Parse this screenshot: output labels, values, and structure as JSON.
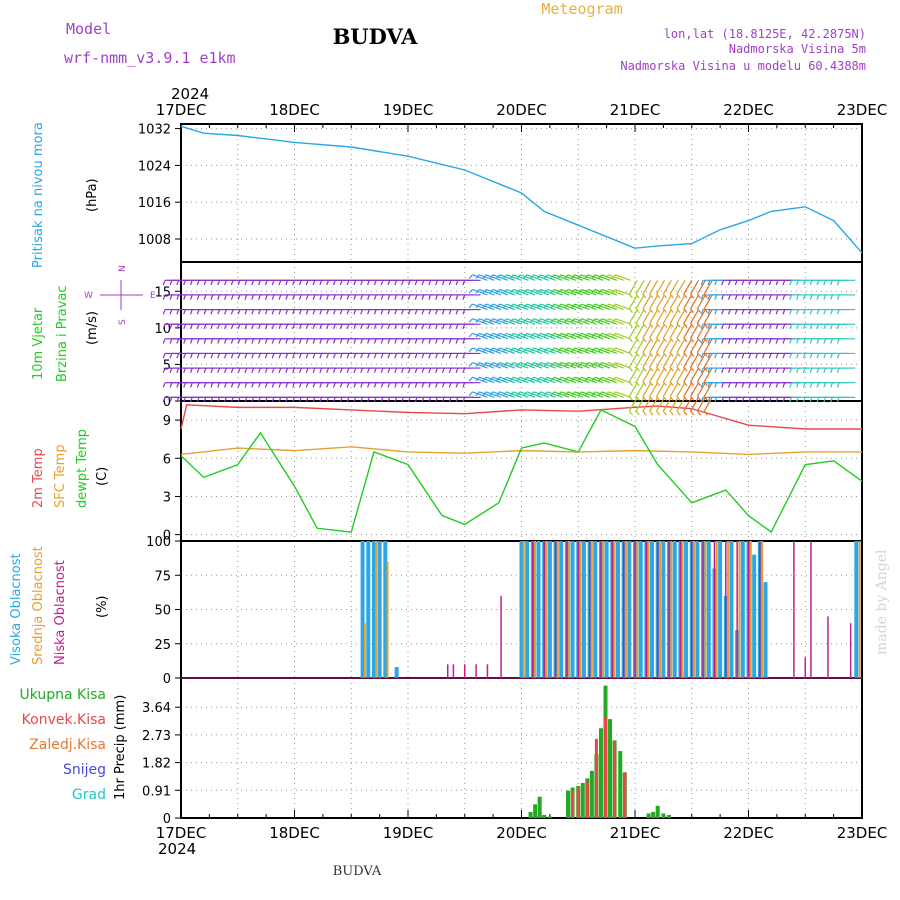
{
  "header": {
    "model_label": "Model",
    "model_name": "wrf-nmm_v3.9.1 e1km",
    "title": "BUDVA",
    "subtitle": "Meteogram",
    "lonlat": "lon,lat (18.8125E, 42.2875N)",
    "elev": "Nadmorska Visina 5m",
    "elev_model": "Nadmorska Visina u modelu 60.4388m",
    "footer": "BUDVA",
    "watermark": "made by Angel"
  },
  "colors": {
    "pressure": "#2aa7e6",
    "temp2m": "#e84848",
    "sfc_temp": "#e6a030",
    "dewpoint": "#22cc22",
    "high_cloud": "#2aa7e6",
    "mid_cloud": "#e6a030",
    "low_cloud": "#c0208c",
    "total_precip": "#22aa22",
    "conv_precip": "#e84848",
    "header_purple": "#a040c8",
    "header_orange": "#e6b040"
  },
  "time_axis": {
    "year": "2024",
    "labels": [
      "17DEC",
      "18DEC",
      "19DEC",
      "20DEC",
      "21DEC",
      "22DEC",
      "23DEC"
    ]
  },
  "chart_data": [
    {
      "type": "line",
      "panel": "pressure",
      "ylabel": "Pritisak na nivou mora",
      "unit": "(hPa)",
      "yticks": [
        "1008",
        "1016",
        "1024",
        "1032"
      ],
      "ylim": [
        1003,
        1033
      ],
      "series": [
        {
          "x": [
            0,
            0.2,
            0.5,
            1,
            1.5,
            2,
            2.5,
            3,
            3.2,
            3.5,
            4,
            4.2,
            4.5,
            4.75,
            5,
            5.2,
            5.5,
            5.75,
            6
          ],
          "values": [
            1032.5,
            1031,
            1030.5,
            1029,
            1028,
            1026,
            1023,
            1018,
            1014,
            1011,
            1006,
            1006.5,
            1007,
            1010,
            1012,
            1014,
            1015,
            1012,
            1005
          ]
        }
      ]
    },
    {
      "type": "barbs",
      "panel": "wind",
      "ylabel": "10m Vjetar Brzina i Pravac",
      "unit": "(m/s)",
      "yticks": [
        "0",
        "5",
        "10",
        "15"
      ],
      "ylim": [
        0,
        19
      ],
      "compass": [
        "N",
        "S",
        "W",
        "E"
      ]
    },
    {
      "type": "line",
      "panel": "temperature",
      "ylabel": "2m Temp SFC Temp dewpt Temp",
      "unit": "(C)",
      "yticks": [
        "0",
        "3",
        "6",
        "9"
      ],
      "ylim": [
        -0.5,
        10.5
      ],
      "series": [
        {
          "name": "2m Temp",
          "x": [
            0,
            0.05,
            0.5,
            1,
            1.5,
            2,
            2.5,
            3,
            3.5,
            4,
            4.2,
            4.5,
            5,
            5.5,
            6
          ],
          "values": [
            8.3,
            10.2,
            10,
            10,
            9.8,
            9.6,
            9.5,
            9.8,
            9.7,
            10,
            10.1,
            9.9,
            8.6,
            8.3,
            8.3
          ]
        },
        {
          "name": "SFC Temp",
          "x": [
            0,
            0.5,
            1,
            1.5,
            2,
            2.5,
            3,
            3.5,
            4,
            4.5,
            5,
            5.5,
            6
          ],
          "values": [
            6.3,
            6.8,
            6.6,
            6.9,
            6.5,
            6.4,
            6.6,
            6.5,
            6.6,
            6.5,
            6.3,
            6.5,
            6.5
          ]
        },
        {
          "name": "dewpt Temp",
          "x": [
            0,
            0.2,
            0.5,
            0.7,
            1,
            1.2,
            1.5,
            1.7,
            2,
            2.3,
            2.5,
            2.8,
            3,
            3.2,
            3.5,
            3.7,
            4,
            4.2,
            4.5,
            4.8,
            5,
            5.2,
            5.5,
            5.75,
            6
          ],
          "values": [
            6.2,
            4.5,
            5.5,
            8,
            3.8,
            0.5,
            0.2,
            6.5,
            5.5,
            1.5,
            0.8,
            2.5,
            6.8,
            7.2,
            6.5,
            9.8,
            8.5,
            5.5,
            2.5,
            3.5,
            1.5,
            0.2,
            5.5,
            5.8,
            4.2
          ]
        }
      ]
    },
    {
      "type": "bar",
      "panel": "clouds",
      "ylabel": "Visoka Oblacnost Srednja Oblacnost Niska Oblacnost",
      "unit": "(%)",
      "yticks": [
        "0",
        "25",
        "50",
        "75",
        "100"
      ],
      "ylim": [
        0,
        100
      ],
      "series": [
        {
          "name": "Visoka Oblacnost",
          "x": [
            1.6,
            1.65,
            1.7,
            1.75,
            1.8,
            1.9,
            3.0,
            3.05,
            3.1,
            3.15,
            3.2,
            3.25,
            3.3,
            3.35,
            3.4,
            3.45,
            3.5,
            3.55,
            3.6,
            3.65,
            3.7,
            3.75,
            3.8,
            3.85,
            3.9,
            3.95,
            4.0,
            4.05,
            4.1,
            4.15,
            4.2,
            4.25,
            4.3,
            4.35,
            4.4,
            4.45,
            4.5,
            4.55,
            4.6,
            4.65,
            4.7,
            4.75,
            4.8,
            4.85,
            4.9,
            4.95,
            5.0,
            5.05,
            5.1,
            5.15,
            5.95
          ],
          "values": [
            100,
            100,
            100,
            100,
            100,
            8,
            100,
            100,
            100,
            100,
            100,
            100,
            100,
            100,
            100,
            100,
            100,
            100,
            100,
            100,
            100,
            100,
            100,
            100,
            100,
            100,
            100,
            100,
            100,
            100,
            100,
            100,
            100,
            100,
            100,
            100,
            100,
            100,
            100,
            100,
            80,
            100,
            60,
            100,
            35,
            100,
            100,
            90,
            100,
            70,
            100
          ]
        },
        {
          "name": "Srednja Oblacnost",
          "x": [
            1.62,
            1.72,
            1.82,
            3.02,
            3.12,
            3.22,
            3.32,
            3.42,
            3.52,
            3.62,
            3.72,
            3.82,
            3.92,
            4.02,
            4.12,
            4.22,
            4.32,
            4.42,
            4.52,
            4.62,
            4.72,
            4.82,
            4.92,
            5.02,
            5.12,
            5.98
          ],
          "values": [
            40,
            100,
            85,
            100,
            100,
            100,
            100,
            100,
            100,
            100,
            100,
            100,
            100,
            100,
            100,
            100,
            100,
            100,
            100,
            100,
            100,
            100,
            100,
            100,
            100,
            100
          ]
        },
        {
          "name": "Niska Oblacnost",
          "x": [
            2.35,
            2.4,
            2.5,
            2.6,
            2.7,
            2.82,
            3.1,
            3.2,
            3.3,
            3.4,
            3.5,
            3.6,
            3.7,
            3.8,
            3.9,
            4.0,
            4.1,
            4.2,
            4.3,
            4.4,
            4.5,
            4.6,
            4.7,
            4.8,
            4.9,
            5.0,
            5.1,
            5.4,
            5.5,
            5.55,
            5.7,
            5.9
          ],
          "values": [
            10,
            10,
            10,
            10,
            10,
            60,
            100,
            100,
            100,
            100,
            100,
            100,
            100,
            100,
            100,
            100,
            100,
            100,
            100,
            100,
            100,
            100,
            100,
            100,
            100,
            100,
            100,
            100,
            15,
            100,
            45,
            40
          ]
        }
      ]
    },
    {
      "type": "bar",
      "panel": "precip",
      "ylabel": "1hr Precip (mm)",
      "legend": [
        "Ukupna Kisa",
        "Konvek.Kisa",
        "Zaledj.Kisa",
        "Snijeg",
        "Grad"
      ],
      "yticks": [
        "0",
        "0.91",
        "1.82",
        "2.73",
        "3.64"
      ],
      "ylim": [
        0,
        4.6
      ],
      "series": [
        {
          "name": "Ukupna Kisa",
          "x": [
            3.08,
            3.12,
            3.16,
            3.2,
            3.25,
            3.41,
            3.45,
            3.5,
            3.54,
            3.58,
            3.62,
            3.66,
            3.7,
            3.74,
            3.78,
            3.82,
            3.87,
            3.91,
            4.12,
            4.16,
            4.2,
            4.25,
            4.3
          ],
          "values": [
            0.2,
            0.45,
            0.7,
            0.1,
            0.05,
            0.9,
            1.0,
            1.05,
            1.15,
            1.3,
            1.55,
            2.1,
            2.95,
            4.35,
            3.25,
            2.55,
            2.2,
            1.5,
            0.15,
            0.2,
            0.4,
            0.15,
            0.1
          ]
        },
        {
          "name": "Konvek.Kisa",
          "x": [
            3.45,
            3.5,
            3.58,
            3.66,
            3.74,
            3.82,
            3.91
          ],
          "values": [
            0.9,
            1.0,
            1.2,
            2.6,
            3.3,
            2.5,
            1.5
          ]
        }
      ]
    }
  ]
}
